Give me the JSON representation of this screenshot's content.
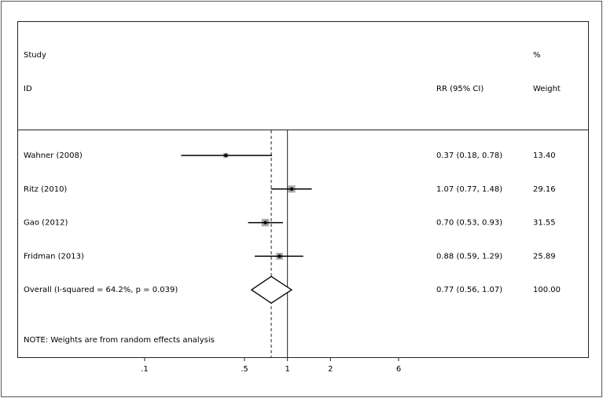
{
  "chart_data": {
    "type": "forest",
    "header": {
      "study": "Study",
      "id": "ID",
      "percent": "%",
      "weight": "Weight",
      "ci": "RR (95% CI)"
    },
    "categories": [
      "Wahner (2008)",
      "Ritz (2010)",
      "Gao (2012)",
      "Fridman (2013)",
      "Overall  (I-squared = 64.2%, p = 0.039)"
    ],
    "values": [
      0.37,
      1.07,
      0.7,
      0.88,
      0.77
    ],
    "lower": [
      0.18,
      0.77,
      0.53,
      0.59,
      0.56
    ],
    "upper": [
      0.78,
      1.48,
      0.93,
      1.29,
      1.07
    ],
    "value_labels": [
      "0.37 (0.18, 0.78)",
      "1.07 (0.77, 1.48)",
      "0.70 (0.53, 0.93)",
      "0.88 (0.59, 1.29)",
      "0.77 (0.56, 1.07)"
    ],
    "weights": [
      13.4,
      29.16,
      31.55,
      25.89,
      100.0
    ],
    "weight_labels": [
      "13.40",
      "29.16",
      "31.55",
      "25.89",
      "100.00"
    ],
    "note": "NOTE: Weights are from random effects analysis",
    "xlim": [
      0.1,
      6
    ],
    "xticks": [
      {
        "value": 0.1,
        "label": ".1"
      },
      {
        "value": 0.5,
        "label": ".5"
      },
      1,
      2,
      6
    ],
    "log_scale": true,
    "null_line": 1,
    "box_color": "#a9a9a9"
  }
}
